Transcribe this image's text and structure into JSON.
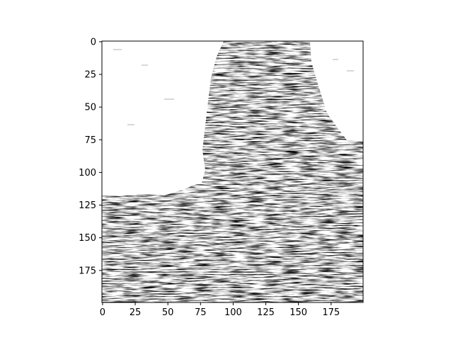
{
  "chart_data": {
    "type": "heatmap",
    "colormap": "gray",
    "image_shape": [
      200,
      200
    ],
    "xlim": [
      -0.5,
      199.5
    ],
    "ylim": [
      199.5,
      -0.5
    ],
    "y_axis_inverted": true,
    "x_ticks": [
      0,
      25,
      50,
      75,
      100,
      125,
      150,
      175
    ],
    "y_ticks": [
      0,
      25,
      50,
      75,
      100,
      125,
      150,
      175
    ],
    "x_tick_labels": [
      "0",
      "25",
      "50",
      "75",
      "100",
      "125",
      "150",
      "175"
    ],
    "y_tick_labels": [
      "0",
      "25",
      "50",
      "75",
      "100",
      "125",
      "150",
      "175"
    ],
    "title": "",
    "xlabel": "",
    "ylabel": "",
    "grid": false,
    "legend": "none"
  }
}
